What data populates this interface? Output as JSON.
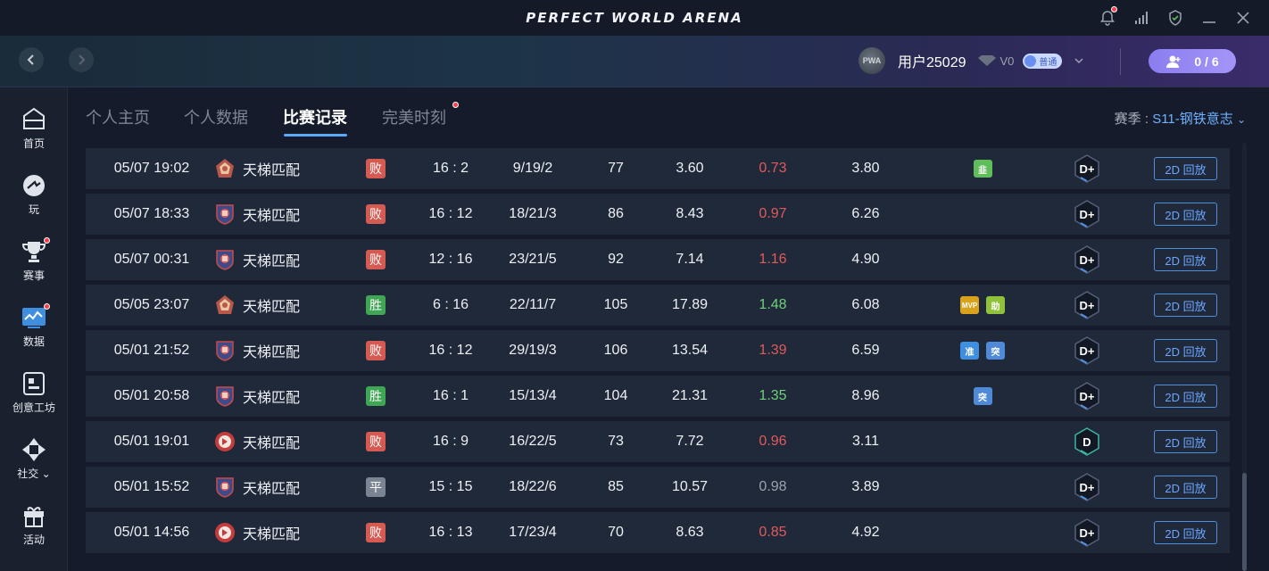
{
  "window": {
    "title": "PERFECT WORLD ARENA"
  },
  "colors": {
    "lose": "#d45a52",
    "win": "#3fa654",
    "draw": "#7b8492",
    "accent": "#5aa9ff",
    "kr_red": "#e05a5a",
    "kr_green": "#6fd07a",
    "kr_gray": "#9aa3ae"
  },
  "header": {
    "avatar_text": "PWA",
    "username": "用户25029",
    "vip": "V0",
    "tier": "普通",
    "team": "0 / 6"
  },
  "sidebar": {
    "items": [
      {
        "label": "首页",
        "icon": "home-icon",
        "dot": false
      },
      {
        "label": "玩",
        "icon": "play-icon",
        "dot": false
      },
      {
        "label": "赛事",
        "icon": "trophy-icon",
        "dot": true
      },
      {
        "label": "数据",
        "icon": "data-chart-icon",
        "dot": true
      },
      {
        "label": "创意工坊",
        "icon": "workshop-icon",
        "dot": false
      },
      {
        "label": "社交",
        "icon": "social-icon",
        "dot": false
      },
      {
        "label": "活动",
        "icon": "gift-icon",
        "dot": false
      }
    ]
  },
  "tabs": [
    {
      "label": "个人主页",
      "active": false,
      "dot": false
    },
    {
      "label": "个人数据",
      "active": false,
      "dot": false
    },
    {
      "label": "比赛记录",
      "active": true,
      "dot": false
    },
    {
      "label": "完美时刻",
      "active": false,
      "dot": true
    }
  ],
  "season": {
    "prefix": "赛季 : ",
    "value": "S11-钢铁意志"
  },
  "replay_label": "2D 回放",
  "matches": [
    {
      "date": "05/07 19:02",
      "map_icon": "mirage-icon",
      "mode": "天梯匹配",
      "result": "败",
      "result_type": "lose",
      "score": "16 : 2",
      "kda": "9/19/2",
      "adr": "77",
      "rating": "3.60",
      "kr": "0.73",
      "kr_type": "red",
      "rws": "3.80",
      "badges": [
        {
          "text": "韭",
          "color": "#5fbe5a"
        }
      ],
      "rank": "D+"
    },
    {
      "date": "05/07 18:33",
      "map_icon": "inferno-icon",
      "mode": "天梯匹配",
      "result": "败",
      "result_type": "lose",
      "score": "16 : 12",
      "kda": "18/21/3",
      "adr": "86",
      "rating": "8.43",
      "kr": "0.97",
      "kr_type": "red",
      "rws": "6.26",
      "badges": [],
      "rank": "D+"
    },
    {
      "date": "05/07 00:31",
      "map_icon": "inferno-icon",
      "mode": "天梯匹配",
      "result": "败",
      "result_type": "lose",
      "score": "12 : 16",
      "kda": "23/21/5",
      "adr": "92",
      "rating": "7.14",
      "kr": "1.16",
      "kr_type": "red",
      "rws": "4.90",
      "badges": [],
      "rank": "D+"
    },
    {
      "date": "05/05 23:07",
      "map_icon": "mirage-icon",
      "mode": "天梯匹配",
      "result": "胜",
      "result_type": "win",
      "score": "6 : 16",
      "kda": "22/11/7",
      "adr": "105",
      "rating": "17.89",
      "kr": "1.48",
      "kr_type": "green",
      "rws": "6.08",
      "badges": [
        {
          "text": "MVP",
          "color": "#d9a21c"
        },
        {
          "text": "助",
          "color": "#8fc23a"
        }
      ],
      "rank": "D+"
    },
    {
      "date": "05/01 21:52",
      "map_icon": "inferno-icon",
      "mode": "天梯匹配",
      "result": "败",
      "result_type": "lose",
      "score": "16 : 12",
      "kda": "29/19/3",
      "adr": "106",
      "rating": "13.54",
      "kr": "1.39",
      "kr_type": "red",
      "rws": "6.59",
      "badges": [
        {
          "text": "准",
          "color": "#3f8ee0"
        },
        {
          "text": "突",
          "color": "#4f8ad8"
        }
      ],
      "rank": "D+"
    },
    {
      "date": "05/01 20:58",
      "map_icon": "inferno-icon",
      "mode": "天梯匹配",
      "result": "胜",
      "result_type": "win",
      "score": "16 : 1",
      "kda": "15/13/4",
      "adr": "104",
      "rating": "21.31",
      "kr": "1.35",
      "kr_type": "green",
      "rws": "8.96",
      "badges": [
        {
          "text": "突",
          "color": "#4f8ad8"
        }
      ],
      "rank": "D+"
    },
    {
      "date": "05/01 19:01",
      "map_icon": "vertigo-icon",
      "mode": "天梯匹配",
      "result": "败",
      "result_type": "lose",
      "score": "16 : 9",
      "kda": "16/22/5",
      "adr": "73",
      "rating": "7.72",
      "kr": "0.96",
      "kr_type": "red",
      "rws": "3.11",
      "badges": [],
      "rank": "D"
    },
    {
      "date": "05/01 15:52",
      "map_icon": "inferno-icon",
      "mode": "天梯匹配",
      "result": "平",
      "result_type": "draw",
      "score": "15 : 15",
      "kda": "18/22/6",
      "adr": "85",
      "rating": "10.57",
      "kr": "0.98",
      "kr_type": "gray",
      "rws": "3.89",
      "badges": [],
      "rank": "D+"
    },
    {
      "date": "05/01 14:56",
      "map_icon": "vertigo-icon",
      "mode": "天梯匹配",
      "result": "败",
      "result_type": "lose",
      "score": "16 : 13",
      "kda": "17/23/4",
      "adr": "70",
      "rating": "8.63",
      "kr": "0.85",
      "kr_type": "red",
      "rws": "4.92",
      "badges": [],
      "rank": "D+"
    }
  ]
}
